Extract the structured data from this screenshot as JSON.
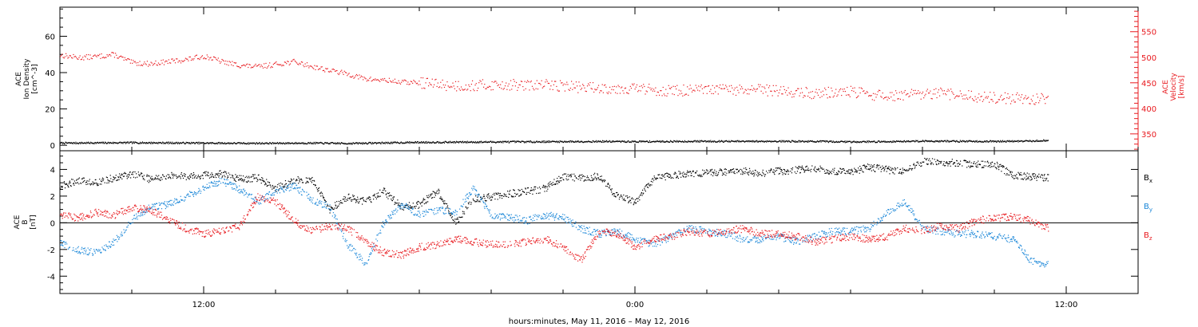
{
  "colors": {
    "black": "#000000",
    "red": "#e8191e",
    "blue": "#1b87d8"
  },
  "chart_data": [
    {
      "type": "scatter",
      "panel": "density-velocity",
      "x_unit": "hours since 2016-05-11 00:00 UT",
      "xlim": [
        8.0,
        38.0
      ],
      "ylabel_left": [
        "ACE",
        "Ion Density",
        "[cm^-3]"
      ],
      "ylim_left": [
        -3,
        76
      ],
      "yticks_left": [
        0,
        20,
        40,
        60
      ],
      "ylabel_right": [
        "ACE",
        "Velocity",
        "[km/s]"
      ],
      "ylim_right": [
        317,
        598
      ],
      "yticks_right": [
        350,
        400,
        450,
        500,
        550
      ],
      "series": [
        {
          "name": "Ion Density",
          "axis": "left",
          "color": "#000000",
          "x": [
            8.0,
            9.0,
            10.0,
            11.0,
            12.0,
            13.0,
            14.0,
            15.0,
            16.0,
            17.0,
            18.0,
            19.0,
            20.0,
            21.0,
            22.0,
            23.0,
            24.0,
            25.0,
            26.0,
            27.0,
            28.0,
            29.0,
            30.0,
            31.0,
            32.0,
            33.0,
            34.0,
            35.0,
            35.5
          ],
          "y": [
            1.5,
            1.6,
            1.7,
            1.6,
            1.5,
            1.4,
            1.4,
            1.5,
            1.3,
            1.6,
            1.9,
            2.0,
            2.1,
            2.2,
            2.3,
            2.4,
            2.3,
            2.4,
            2.5,
            2.4,
            2.5,
            2.4,
            2.2,
            2.3,
            2.6,
            2.5,
            2.4,
            2.6,
            3.0
          ]
        },
        {
          "name": "Velocity",
          "axis": "right",
          "color": "#e8191e",
          "x": [
            8.0,
            8.5,
            9.0,
            9.5,
            10.0,
            10.5,
            11.0,
            11.5,
            12.0,
            12.25,
            12.5,
            13.0,
            13.5,
            14.0,
            14.5,
            15.0,
            15.5,
            16.0,
            16.5,
            17.0,
            17.5,
            18.0,
            18.5,
            19.0,
            19.5,
            20.0,
            20.5,
            21.0,
            21.5,
            22.0,
            22.5,
            23.0,
            23.5,
            24.0,
            24.5,
            25.0,
            25.5,
            26.0,
            26.5,
            27.0,
            27.5,
            28.0,
            28.5,
            29.0,
            29.5,
            30.0,
            30.5,
            31.0,
            31.5,
            32.0,
            32.5,
            33.0,
            33.5,
            34.0,
            34.5,
            35.0,
            35.5
          ],
          "y": [
            505,
            500,
            502,
            506,
            490,
            488,
            492,
            496,
            503,
            498,
            492,
            485,
            482,
            487,
            492,
            483,
            475,
            468,
            458,
            456,
            452,
            451,
            448,
            445,
            445,
            447,
            447,
            445,
            447,
            445,
            442,
            441,
            440,
            440,
            437,
            435,
            436,
            436,
            438,
            435,
            437,
            435,
            432,
            430,
            432,
            433,
            428,
            425,
            427,
            427,
            430,
            426,
            424,
            421,
            421,
            418,
            421
          ]
        }
      ]
    },
    {
      "type": "scatter",
      "panel": "magnetic-field",
      "x_unit": "hours since 2016-05-11 00:00 UT",
      "xlim": [
        8.0,
        38.0
      ],
      "ylabel": [
        "ACE",
        "B",
        "[nT]"
      ],
      "ylim": [
        -5.3,
        5.4
      ],
      "yticks": [
        -4,
        -2,
        0,
        2,
        4
      ],
      "zero_line": true,
      "legend_placement": "right",
      "xticks": [
        {
          "x": 12,
          "label": "12:00"
        },
        {
          "x": 24,
          "label": "0:00"
        },
        {
          "x": 36,
          "label": "12:00"
        }
      ],
      "xlabel": "hours:minutes, May 11, 2016 – May 12, 2016",
      "series": [
        {
          "name": "Bx",
          "label": "B",
          "subscript": "x",
          "color": "#000000",
          "x": [
            8.0,
            8.5,
            9.0,
            9.5,
            10.0,
            10.5,
            11.0,
            11.5,
            12.0,
            12.5,
            13.0,
            13.5,
            14.0,
            14.5,
            15.0,
            15.5,
            16.0,
            16.5,
            17.0,
            17.5,
            18.0,
            18.5,
            19.0,
            19.5,
            20.0,
            20.5,
            21.0,
            21.5,
            22.0,
            22.5,
            23.0,
            23.5,
            24.0,
            24.5,
            25.0,
            25.5,
            26.0,
            26.5,
            27.0,
            27.5,
            28.0,
            28.5,
            29.0,
            29.5,
            30.0,
            30.5,
            31.0,
            31.5,
            32.0,
            32.5,
            33.0,
            33.5,
            34.0,
            34.5,
            35.0,
            35.5
          ],
          "y": [
            2.8,
            3.2,
            3.0,
            3.4,
            3.7,
            3.3,
            3.6,
            3.5,
            3.6,
            3.7,
            3.3,
            3.4,
            2.6,
            3.2,
            3.3,
            1.0,
            2.0,
            1.6,
            2.4,
            1.2,
            1.4,
            2.4,
            0.0,
            1.8,
            2.0,
            2.2,
            2.4,
            2.6,
            3.5,
            3.4,
            3.5,
            2.0,
            1.6,
            3.3,
            3.6,
            3.7,
            3.8,
            3.8,
            3.9,
            3.7,
            3.9,
            4.0,
            4.1,
            3.9,
            3.8,
            4.2,
            4.0,
            3.9,
            4.6,
            4.6,
            4.5,
            4.4,
            4.4,
            3.6,
            3.5,
            3.4
          ]
        },
        {
          "name": "By",
          "label": "B",
          "subscript": "y",
          "color": "#1b87d8",
          "x": [
            8.0,
            8.5,
            9.0,
            9.5,
            10.0,
            10.5,
            11.0,
            11.5,
            12.0,
            12.5,
            13.0,
            13.5,
            14.0,
            14.5,
            15.0,
            15.5,
            16.0,
            16.5,
            17.0,
            17.5,
            18.0,
            18.5,
            19.0,
            19.5,
            20.0,
            20.5,
            21.0,
            21.5,
            22.0,
            22.5,
            23.0,
            23.5,
            24.0,
            24.5,
            25.0,
            25.5,
            26.0,
            26.5,
            27.0,
            27.5,
            28.0,
            28.5,
            29.0,
            29.5,
            30.0,
            30.5,
            31.0,
            31.5,
            32.0,
            32.5,
            33.0,
            33.5,
            34.0,
            34.5,
            35.0,
            35.5
          ],
          "y": [
            -1.5,
            -2.0,
            -2.2,
            -1.4,
            0.2,
            1.2,
            1.4,
            2.0,
            2.6,
            3.2,
            2.5,
            1.6,
            2.4,
            2.8,
            1.8,
            1.2,
            -1.6,
            -3.0,
            0.0,
            1.4,
            0.6,
            1.0,
            0.8,
            2.6,
            0.6,
            0.4,
            0.2,
            0.6,
            0.4,
            -0.4,
            -0.8,
            -0.6,
            -1.2,
            -1.6,
            -1.0,
            -0.4,
            -0.6,
            -0.8,
            -1.2,
            -1.2,
            -1.0,
            -1.4,
            -1.0,
            -0.6,
            -0.6,
            -0.4,
            0.8,
            1.6,
            -0.4,
            -0.6,
            -0.8,
            -0.8,
            -1.0,
            -1.2,
            -2.8,
            -3.1
          ]
        },
        {
          "name": "Bz",
          "label": "B",
          "subscript": "z",
          "color": "#e8191e",
          "x": [
            8.0,
            8.5,
            9.0,
            9.5,
            10.0,
            10.5,
            11.0,
            11.5,
            12.0,
            12.5,
            13.0,
            13.5,
            14.0,
            14.5,
            15.0,
            15.5,
            16.0,
            16.5,
            17.0,
            17.5,
            18.0,
            18.5,
            19.0,
            19.5,
            20.0,
            20.5,
            21.0,
            21.5,
            22.0,
            22.5,
            23.0,
            23.5,
            24.0,
            24.5,
            25.0,
            25.5,
            26.0,
            26.5,
            27.0,
            27.5,
            28.0,
            28.5,
            29.0,
            29.5,
            30.0,
            30.5,
            31.0,
            31.5,
            32.0,
            32.5,
            33.0,
            33.5,
            34.0,
            34.5,
            35.0,
            35.5
          ],
          "y": [
            0.6,
            0.4,
            0.8,
            0.6,
            1.2,
            1.0,
            0.3,
            -0.4,
            -0.8,
            -0.6,
            -0.2,
            2.0,
            1.6,
            0.2,
            -0.6,
            -0.2,
            -0.4,
            -1.4,
            -2.2,
            -2.4,
            -1.8,
            -1.6,
            -1.2,
            -1.4,
            -1.6,
            -1.6,
            -1.4,
            -1.2,
            -1.8,
            -2.8,
            -0.6,
            -0.8,
            -1.8,
            -1.2,
            -1.0,
            -0.6,
            -0.8,
            -0.6,
            -0.4,
            -0.8,
            -0.8,
            -1.0,
            -1.4,
            -1.2,
            -1.0,
            -1.2,
            -1.0,
            -0.4,
            -0.6,
            -0.2,
            -0.4,
            0.2,
            0.4,
            0.5,
            0.2,
            -0.4
          ]
        }
      ]
    }
  ]
}
